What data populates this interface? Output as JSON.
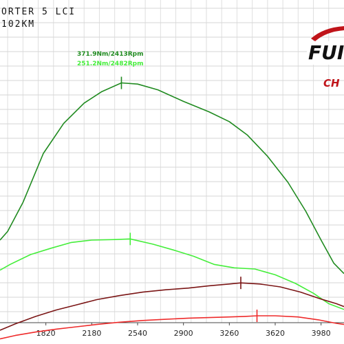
{
  "header": {
    "line1": "ORTER 5 LCI",
    "line2": "102KM"
  },
  "logo": {
    "text_main": "FUI",
    "text_sub": "CH",
    "accent_color": "#c0141a"
  },
  "chart_data": {
    "type": "line",
    "title": "",
    "xlabel": "",
    "ylabel": "",
    "xlim": [
      1460,
      4160
    ],
    "x_ticks": [
      "1820",
      "2180",
      "2540",
      "2900",
      "3260",
      "3620",
      "3980"
    ],
    "grid": true,
    "series": [
      {
        "color": "#1f8a1f",
        "points": [
          [
            1460,
            100
          ],
          [
            1520,
            115
          ],
          [
            1640,
            165
          ],
          [
            1800,
            250
          ],
          [
            1960,
            302
          ],
          [
            2120,
            337
          ],
          [
            2260,
            357
          ],
          [
            2413,
            372
          ],
          [
            2540,
            370
          ],
          [
            2700,
            360
          ],
          [
            2900,
            340
          ],
          [
            3100,
            322
          ],
          [
            3260,
            305
          ],
          [
            3400,
            282
          ],
          [
            3560,
            245
          ],
          [
            3720,
            200
          ],
          [
            3860,
            150
          ],
          [
            3980,
            100
          ],
          [
            4080,
            60
          ],
          [
            4160,
            42
          ]
        ],
        "marker": [
          2413,
          372
        ]
      },
      {
        "color": "#44ee3a",
        "points": [
          [
            1460,
            48
          ],
          [
            1540,
            58
          ],
          [
            1700,
            75
          ],
          [
            1860,
            86
          ],
          [
            2020,
            96
          ],
          [
            2180,
            100
          ],
          [
            2360,
            101
          ],
          [
            2482,
            102
          ],
          [
            2660,
            93
          ],
          [
            2820,
            83
          ],
          [
            2980,
            72
          ],
          [
            3140,
            58
          ],
          [
            3300,
            52
          ],
          [
            3460,
            50
          ],
          [
            3620,
            40
          ],
          [
            3780,
            25
          ],
          [
            3920,
            8
          ],
          [
            4040,
            -10
          ],
          [
            4160,
            -20
          ]
        ],
        "marker": [
          2482,
          102
        ]
      },
      {
        "color": "#7a1414",
        "points": [
          [
            1460,
            -56
          ],
          [
            1580,
            -45
          ],
          [
            1740,
            -32
          ],
          [
            1900,
            -21
          ],
          [
            2060,
            -12
          ],
          [
            2220,
            -3
          ],
          [
            2400,
            4
          ],
          [
            2580,
            10
          ],
          [
            2760,
            14
          ],
          [
            2940,
            17
          ],
          [
            3100,
            21
          ],
          [
            3260,
            24
          ],
          [
            3350,
            26
          ],
          [
            3500,
            24
          ],
          [
            3660,
            19
          ],
          [
            3820,
            10
          ],
          [
            3980,
            -2
          ],
          [
            4100,
            -10
          ],
          [
            4160,
            -15
          ]
        ],
        "marker": [
          3350,
          26
        ]
      },
      {
        "color": "#ee2a2a",
        "points": [
          [
            1460,
            -71
          ],
          [
            1580,
            -65
          ],
          [
            1740,
            -59
          ],
          [
            1900,
            -54
          ],
          [
            2060,
            -50
          ],
          [
            2220,
            -46
          ],
          [
            2400,
            -42
          ],
          [
            2580,
            -39
          ],
          [
            2760,
            -37
          ],
          [
            2940,
            -35
          ],
          [
            3100,
            -34
          ],
          [
            3260,
            -33
          ],
          [
            3380,
            -32
          ],
          [
            3477,
            -31
          ],
          [
            3620,
            -31
          ],
          [
            3800,
            -33
          ],
          [
            3960,
            -38
          ],
          [
            4100,
            -44
          ],
          [
            4160,
            -46
          ]
        ],
        "marker": [
          3477,
          -31
        ]
      }
    ],
    "annotations": [
      {
        "text": "371.9Nm/2413Rpm",
        "color": "#1f8a1f"
      },
      {
        "text": "251.2Nm/2482Rpm",
        "color": "#44ee3a"
      }
    ]
  }
}
